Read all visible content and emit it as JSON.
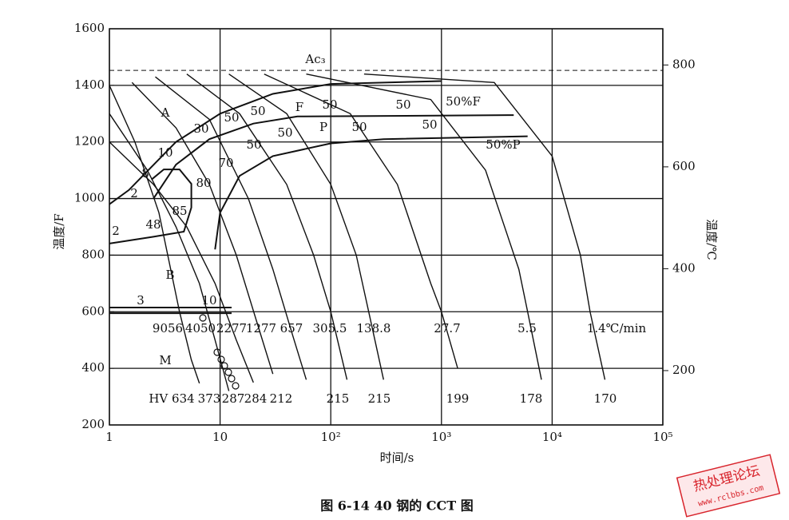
{
  "chart_data": {
    "type": "line",
    "caption": "图 6-14   40 钢的 CCT 图",
    "xlabel": "时间/s",
    "ylabel": "温度/F",
    "y2label": "温度/℃",
    "log_x": true,
    "grid": true,
    "color": "#111111",
    "xlim": [
      1,
      100000
    ],
    "xticks": [
      1,
      10,
      {
        "value": 100,
        "label": "10²"
      },
      {
        "value": 1000,
        "label": "10³"
      },
      {
        "value": 10000,
        "label": "10⁴"
      },
      {
        "value": 100000,
        "label": "10⁵"
      }
    ],
    "ylim": [
      200,
      1600
    ],
    "yticks": [
      200,
      400,
      600,
      800,
      1000,
      1200,
      1400,
      1600
    ],
    "y2lim": [
      93.3,
      871.1
    ],
    "y2ticks": [
      200,
      400,
      600,
      800
    ],
    "ac3_temperature": 1453,
    "series": [
      {
        "x": [
          1,
          1.7,
          2.8,
          4.3,
          5.5,
          6.5
        ],
        "values": [
          1400,
          1200,
          950,
          600,
          430,
          347
        ],
        "rate_label": "9056",
        "hardness_label": "HV 634"
      },
      {
        "x": [
          1,
          2.2,
          4,
          6.5,
          9,
          12
        ],
        "values": [
          1300,
          1100,
          900,
          700,
          500,
          320
        ],
        "rate_label": "4050",
        "hardness_label": "373"
      },
      {
        "x": [
          1,
          2.5,
          5,
          9,
          14,
          20
        ],
        "values": [
          1200,
          1050,
          900,
          700,
          500,
          350
        ],
        "rate_label": "2277",
        "hardness_label": "287"
      },
      {
        "x": [
          1.6,
          4,
          8,
          14,
          22,
          30
        ],
        "values": [
          1410,
          1250,
          1050,
          800,
          550,
          380
        ],
        "rate_label": "1277",
        "hardness_label": "284"
      },
      {
        "x": [
          2.6,
          8,
          18,
          30,
          45,
          60
        ],
        "values": [
          1430,
          1280,
          1000,
          750,
          520,
          360
        ],
        "rate_label": "657",
        "hardness_label": "212"
      },
      {
        "x": [
          5,
          15,
          40,
          70,
          100,
          140
        ],
        "values": [
          1440,
          1300,
          1050,
          800,
          600,
          360
        ],
        "rate_label": "305.5",
        "hardness_label": "215"
      },
      {
        "x": [
          12,
          40,
          100,
          170,
          220,
          300
        ],
        "values": [
          1440,
          1300,
          1050,
          800,
          600,
          360
        ],
        "rate_label": "138.8",
        "hardness_label": "215"
      },
      {
        "x": [
          25,
          150,
          400,
          800,
          1000,
          1400
        ],
        "values": [
          1440,
          1300,
          1050,
          700,
          600,
          400
        ],
        "rate_label": "27.7",
        "hardness_label": "199"
      },
      {
        "x": [
          60,
          800,
          2500,
          5000,
          6000,
          8000
        ],
        "values": [
          1440,
          1350,
          1100,
          750,
          600,
          360
        ],
        "rate_label": "5.5",
        "hardness_label": "178"
      },
      {
        "x": [
          200,
          3000,
          10000,
          18000,
          22000,
          30000
        ],
        "values": [
          1440,
          1410,
          1150,
          800,
          600,
          360
        ],
        "rate_label": "1.4℃/min",
        "hardness_label": "170"
      }
    ],
    "boundaries": [
      {
        "x": [
          1,
          1.5,
          2,
          4,
          10,
          30,
          100,
          1000
        ],
        "values": [
          980,
          1030,
          1080,
          1200,
          1300,
          1370,
          1405,
          1415
        ]
      },
      {
        "x": [
          2.5,
          4,
          8,
          20,
          50,
          4500
        ],
        "values": [
          1000,
          1120,
          1210,
          1265,
          1290,
          1295
        ]
      },
      {
        "x": [
          9,
          10,
          15,
          30,
          100,
          300,
          6000
        ],
        "values": [
          820,
          950,
          1080,
          1150,
          1195,
          1210,
          1220
        ]
      },
      {
        "x": [
          1,
          2.5,
          4.7,
          5.5,
          5.5,
          4.3,
          3.1,
          2.4
        ],
        "values": [
          841,
          865,
          883,
          968,
          1052,
          1103,
          1103,
          1067
        ]
      },
      {
        "x": [
          1,
          12.7
        ],
        "values": [
          615,
          615
        ]
      },
      {
        "x": [
          1,
          12.7
        ],
        "values": [
          595,
          595
        ]
      }
    ],
    "annotations": [
      "Ac₃",
      "50%F",
      "50%P",
      "A",
      "F",
      "P",
      "B",
      "M",
      "50",
      "50",
      "50",
      "50",
      "50",
      "50",
      "50",
      "50",
      "30",
      "10",
      "8",
      "2",
      "2",
      "48",
      "85",
      "80",
      "70",
      "3",
      "10"
    ],
    "watermark": {
      "title": "热处理论坛",
      "url": "www.rclbbs.com"
    }
  }
}
